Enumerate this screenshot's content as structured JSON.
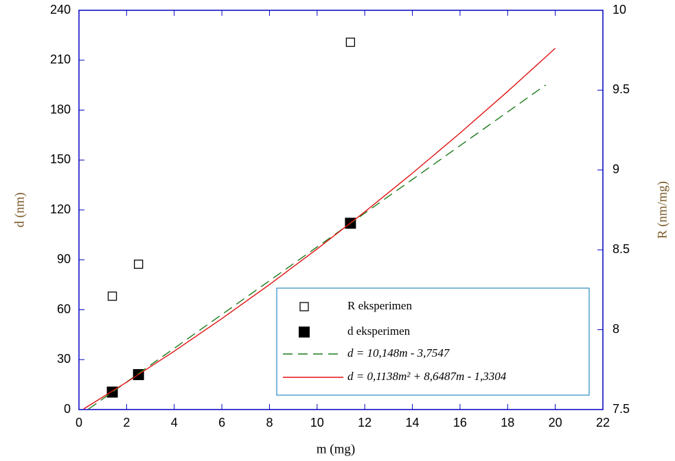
{
  "chart_data": {
    "type": "line",
    "x_label": "m (mg)",
    "y_label": "d (nm)",
    "y2_label": "R (nm/mg)",
    "xlim": [
      0,
      22
    ],
    "xticks": [
      0,
      2,
      4,
      6,
      8,
      10,
      12,
      14,
      16,
      18,
      20,
      22
    ],
    "ylim": [
      0,
      240
    ],
    "yticks": [
      0,
      30,
      60,
      90,
      120,
      150,
      180,
      210,
      240
    ],
    "y2lim": [
      7.5,
      10
    ],
    "y2ticks": [
      7.5,
      8,
      8.5,
      9,
      9.5,
      10
    ],
    "legend": "lower-right",
    "series": [
      {
        "name": "R eksperimen",
        "color": "#000000",
        "marker": "open-square",
        "axis": "y2",
        "x": [
          1.4,
          2.5,
          11.4
        ],
        "values": [
          8.21,
          8.41,
          9.8
        ]
      },
      {
        "name": "d eksperimen",
        "color": "#000000",
        "marker": "filled-square",
        "x": [
          1.4,
          2.5,
          11.4
        ],
        "values": [
          10.5,
          21,
          112
        ]
      },
      {
        "name": "d = 10,148m - 3,7547",
        "color": "#1a7a1a",
        "dashed": true,
        "x": [
          0.4,
          19.6
        ],
        "values": [
          0.304,
          195.146
        ]
      },
      {
        "name": "d = 0,1138m² + 8,6487m - 1,3304",
        "color": "#e01010",
        "x": [
          0.2,
          2,
          4,
          6,
          8,
          10,
          12,
          14,
          16,
          18,
          20
        ],
        "values": [
          0.404,
          16.422,
          35.085,
          54.659,
          75.142,
          96.537,
          118.841,
          142.056,
          166.182,
          191.217,
          217.162
        ]
      }
    ]
  }
}
